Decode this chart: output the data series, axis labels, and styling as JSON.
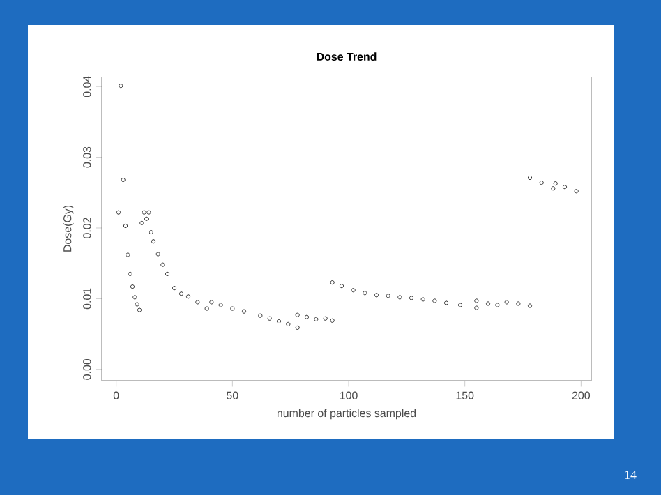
{
  "chart_data": {
    "type": "scatter",
    "title": "Dose Trend",
    "xlabel": "number of particles sampled",
    "ylabel": "Dose(Gy)",
    "x": [
      1,
      2,
      3,
      4,
      5,
      6,
      7,
      8,
      9,
      10,
      11,
      12,
      13,
      14,
      15,
      16,
      18,
      20,
      22,
      25,
      28,
      31,
      35,
      39,
      41,
      45,
      50,
      55,
      62,
      66,
      70,
      74,
      78,
      78,
      82,
      86,
      90,
      93,
      93,
      97,
      102,
      107,
      112,
      117,
      122,
      127,
      132,
      137,
      142,
      148,
      155,
      155,
      160,
      164,
      168,
      173,
      178,
      178,
      183,
      188,
      189,
      193,
      198
    ],
    "values": [
      0.0222,
      0.0401,
      0.0268,
      0.0203,
      0.0162,
      0.0135,
      0.0117,
      0.0102,
      0.0092,
      0.0084,
      0.0207,
      0.0222,
      0.0213,
      0.0222,
      0.0194,
      0.0181,
      0.0163,
      0.0148,
      0.0135,
      0.0115,
      0.0107,
      0.0103,
      0.0095,
      0.0086,
      0.0095,
      0.0091,
      0.0086,
      0.0082,
      0.0076,
      0.0072,
      0.0068,
      0.0064,
      0.0059,
      0.0077,
      0.0074,
      0.0071,
      0.0072,
      0.0069,
      0.0123,
      0.0118,
      0.0112,
      0.0108,
      0.0105,
      0.0104,
      0.0102,
      0.0101,
      0.0099,
      0.0097,
      0.0094,
      0.0091,
      0.0087,
      0.0097,
      0.0093,
      0.0091,
      0.0095,
      0.0093,
      0.009,
      0.0271,
      0.0264,
      0.0256,
      0.0263,
      0.0258,
      0.0252
    ],
    "color": "#000000",
    "marker": "circle",
    "xlim": [
      -6.2,
      204.4
    ],
    "ylim": [
      -0.0016,
      0.0414
    ],
    "xticks": [
      0,
      50,
      100,
      150,
      200
    ],
    "yticks": [
      {
        "value": 0,
        "label": "0.00"
      },
      {
        "value": 0.01,
        "label": "0.01"
      },
      {
        "value": 0.02,
        "label": "0.02"
      },
      {
        "value": 0.03,
        "label": "0.03"
      },
      {
        "value": 0.04,
        "label": "0.04"
      }
    ],
    "annotations": [
      "14"
    ]
  }
}
